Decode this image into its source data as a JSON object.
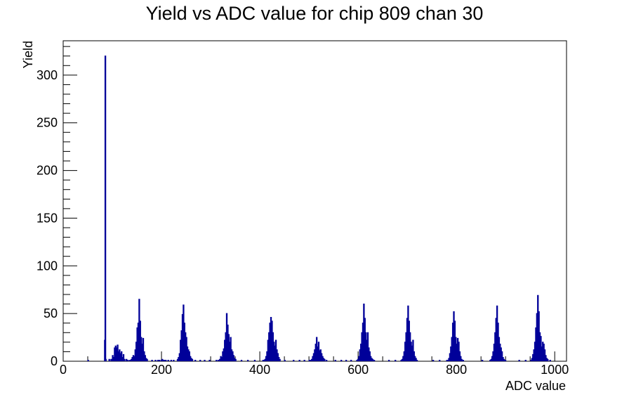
{
  "chart_data": {
    "type": "histogram",
    "title": "Yield vs ADC value for chip 809 chan 30",
    "xlabel": "ADC value",
    "ylabel": "Yield",
    "xlim": [
      0,
      1024
    ],
    "ylim": [
      0,
      336
    ],
    "x_ticks": [
      0,
      200,
      400,
      600,
      800,
      1000
    ],
    "y_ticks": [
      0,
      50,
      100,
      150,
      200,
      250,
      300
    ],
    "line_color": "#000099",
    "bins": [
      [
        50,
        1
      ],
      [
        84,
        22
      ],
      [
        85,
        320
      ],
      [
        86,
        2
      ],
      [
        93,
        2
      ],
      [
        97,
        2
      ],
      [
        100,
        6
      ],
      [
        102,
        4
      ],
      [
        104,
        14
      ],
      [
        106,
        16
      ],
      [
        108,
        14
      ],
      [
        110,
        17
      ],
      [
        112,
        10
      ],
      [
        114,
        12
      ],
      [
        116,
        8
      ],
      [
        118,
        10
      ],
      [
        120,
        4
      ],
      [
        122,
        7
      ],
      [
        124,
        2
      ],
      [
        128,
        2
      ],
      [
        131,
        1
      ],
      [
        135,
        1
      ],
      [
        138,
        2
      ],
      [
        140,
        4
      ],
      [
        142,
        6
      ],
      [
        144,
        5
      ],
      [
        146,
        12
      ],
      [
        148,
        20
      ],
      [
        150,
        35
      ],
      [
        152,
        40
      ],
      [
        154,
        65
      ],
      [
        156,
        42
      ],
      [
        158,
        25
      ],
      [
        160,
        18
      ],
      [
        162,
        24
      ],
      [
        164,
        10
      ],
      [
        166,
        6
      ],
      [
        168,
        3
      ],
      [
        170,
        2
      ],
      [
        180,
        1
      ],
      [
        187,
        1
      ],
      [
        192,
        1
      ],
      [
        195,
        1
      ],
      [
        199,
        1
      ],
      [
        201,
        2
      ],
      [
        203,
        1
      ],
      [
        205,
        1
      ],
      [
        208,
        1
      ],
      [
        213,
        1
      ],
      [
        219,
        1
      ],
      [
        224,
        1
      ],
      [
        232,
        2
      ],
      [
        234,
        4
      ],
      [
        236,
        8
      ],
      [
        238,
        22
      ],
      [
        240,
        32
      ],
      [
        242,
        49
      ],
      [
        244,
        59
      ],
      [
        246,
        40
      ],
      [
        248,
        30
      ],
      [
        250,
        25
      ],
      [
        252,
        15
      ],
      [
        254,
        12
      ],
      [
        256,
        10
      ],
      [
        258,
        5
      ],
      [
        260,
        3
      ],
      [
        262,
        2
      ],
      [
        268,
        1
      ],
      [
        278,
        1
      ],
      [
        287,
        1
      ],
      [
        297,
        1
      ],
      [
        311,
        1
      ],
      [
        315,
        1
      ],
      [
        318,
        2
      ],
      [
        320,
        5
      ],
      [
        322,
        4
      ],
      [
        324,
        10
      ],
      [
        326,
        13
      ],
      [
        328,
        22
      ],
      [
        330,
        30
      ],
      [
        332,
        50
      ],
      [
        334,
        38
      ],
      [
        336,
        28
      ],
      [
        338,
        20
      ],
      [
        340,
        25
      ],
      [
        342,
        12
      ],
      [
        344,
        10
      ],
      [
        346,
        6
      ],
      [
        348,
        3
      ],
      [
        350,
        2
      ],
      [
        362,
        1
      ],
      [
        375,
        1
      ],
      [
        389,
        1
      ],
      [
        406,
        1
      ],
      [
        408,
        1
      ],
      [
        410,
        2
      ],
      [
        412,
        5
      ],
      [
        414,
        10
      ],
      [
        416,
        22
      ],
      [
        418,
        30
      ],
      [
        420,
        40
      ],
      [
        422,
        46
      ],
      [
        424,
        42
      ],
      [
        426,
        30
      ],
      [
        428,
        20
      ],
      [
        430,
        16
      ],
      [
        432,
        22
      ],
      [
        434,
        12
      ],
      [
        436,
        8
      ],
      [
        438,
        4
      ],
      [
        440,
        2
      ],
      [
        450,
        1
      ],
      [
        468,
        1
      ],
      [
        480,
        1
      ],
      [
        490,
        1
      ],
      [
        500,
        1
      ],
      [
        503,
        1
      ],
      [
        505,
        2
      ],
      [
        507,
        5
      ],
      [
        509,
        8
      ],
      [
        511,
        12
      ],
      [
        513,
        18
      ],
      [
        515,
        25
      ],
      [
        517,
        15
      ],
      [
        519,
        20
      ],
      [
        521,
        11
      ],
      [
        523,
        12
      ],
      [
        525,
        8
      ],
      [
        527,
        5
      ],
      [
        529,
        3
      ],
      [
        531,
        2
      ],
      [
        535,
        1
      ],
      [
        553,
        1
      ],
      [
        565,
        1
      ],
      [
        575,
        1
      ],
      [
        585,
        1
      ],
      [
        597,
        1
      ],
      [
        599,
        2
      ],
      [
        601,
        5
      ],
      [
        603,
        12
      ],
      [
        605,
        18
      ],
      [
        607,
        30
      ],
      [
        609,
        40
      ],
      [
        611,
        60
      ],
      [
        613,
        45
      ],
      [
        615,
        30
      ],
      [
        617,
        22
      ],
      [
        619,
        30
      ],
      [
        621,
        14
      ],
      [
        623,
        10
      ],
      [
        625,
        5
      ],
      [
        627,
        3
      ],
      [
        629,
        2
      ],
      [
        632,
        1
      ],
      [
        662,
        1
      ],
      [
        675,
        1
      ],
      [
        687,
        1
      ],
      [
        689,
        2
      ],
      [
        691,
        5
      ],
      [
        693,
        10
      ],
      [
        695,
        20
      ],
      [
        697,
        30
      ],
      [
        699,
        45
      ],
      [
        701,
        58
      ],
      [
        703,
        42
      ],
      [
        705,
        30
      ],
      [
        707,
        20
      ],
      [
        709,
        16
      ],
      [
        711,
        22
      ],
      [
        713,
        10
      ],
      [
        715,
        5
      ],
      [
        717,
        3
      ],
      [
        719,
        1
      ],
      [
        752,
        1
      ],
      [
        765,
        1
      ],
      [
        780,
        1
      ],
      [
        782,
        1
      ],
      [
        784,
        3
      ],
      [
        786,
        8
      ],
      [
        788,
        15
      ],
      [
        790,
        25
      ],
      [
        792,
        40
      ],
      [
        794,
        52
      ],
      [
        796,
        42
      ],
      [
        798,
        25
      ],
      [
        800,
        18
      ],
      [
        802,
        24
      ],
      [
        804,
        20
      ],
      [
        806,
        10
      ],
      [
        808,
        5
      ],
      [
        810,
        2
      ],
      [
        813,
        1
      ],
      [
        852,
        1
      ],
      [
        868,
        1
      ],
      [
        870,
        2
      ],
      [
        872,
        5
      ],
      [
        874,
        10
      ],
      [
        876,
        18
      ],
      [
        878,
        30
      ],
      [
        880,
        45
      ],
      [
        882,
        58
      ],
      [
        884,
        40
      ],
      [
        886,
        25
      ],
      [
        888,
        18
      ],
      [
        890,
        14
      ],
      [
        892,
        10
      ],
      [
        894,
        4
      ],
      [
        896,
        2
      ],
      [
        899,
        1
      ],
      [
        927,
        1
      ],
      [
        940,
        1
      ],
      [
        951,
        1
      ],
      [
        953,
        3
      ],
      [
        955,
        7
      ],
      [
        957,
        12
      ],
      [
        959,
        20
      ],
      [
        961,
        35
      ],
      [
        963,
        50
      ],
      [
        965,
        69
      ],
      [
        967,
        52
      ],
      [
        969,
        30
      ],
      [
        971,
        26
      ],
      [
        973,
        15
      ],
      [
        975,
        20
      ],
      [
        977,
        18
      ],
      [
        979,
        12
      ],
      [
        981,
        6
      ],
      [
        983,
        3
      ],
      [
        985,
        2
      ],
      [
        990,
        1
      ]
    ]
  }
}
